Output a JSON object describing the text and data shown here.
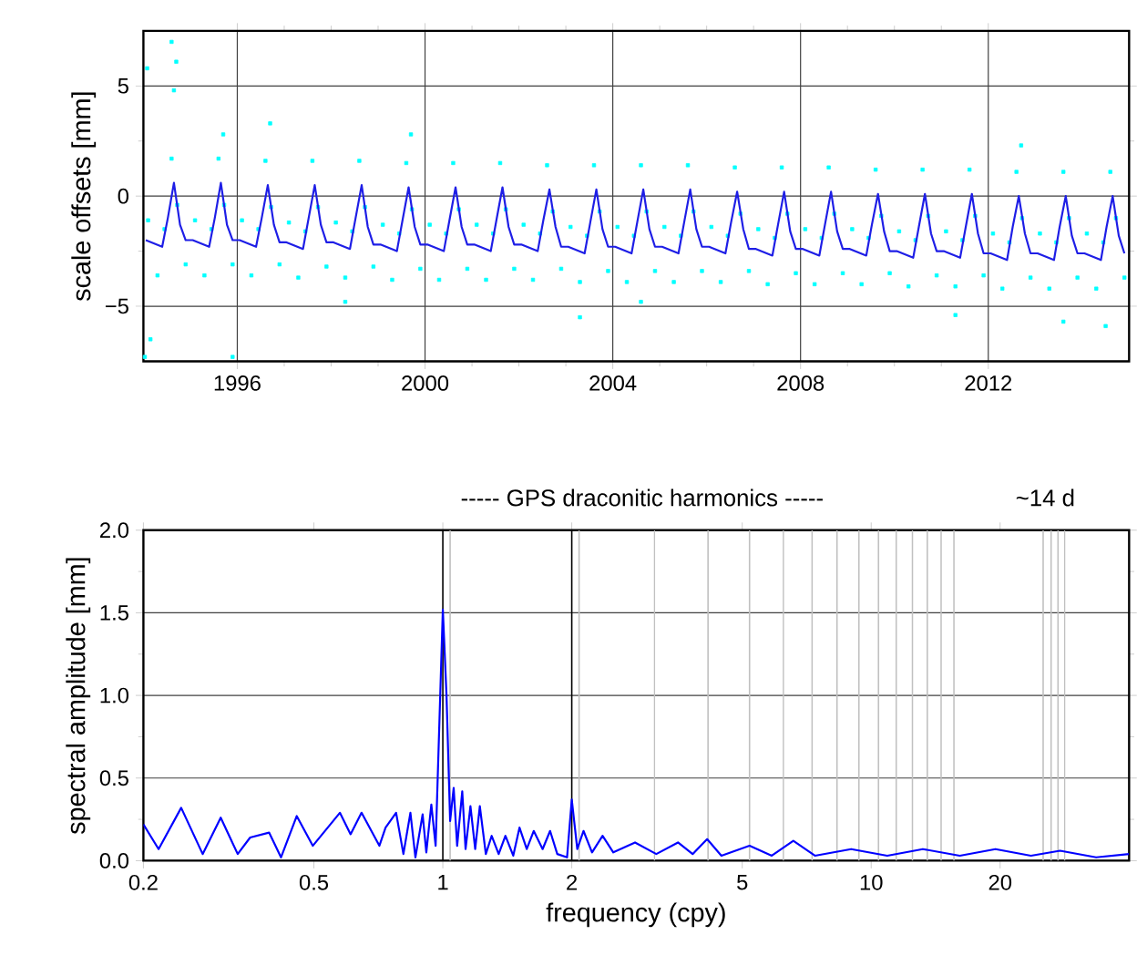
{
  "chart_data": [
    {
      "type": "scatter",
      "ylabel": "scale offsets [mm]",
      "xlim": [
        1994,
        2015
      ],
      "ylim": [
        -7.5,
        7.5
      ],
      "xticks": [
        1996,
        2000,
        2004,
        2008,
        2012
      ],
      "yticks": [
        {
          "value": -5,
          "label": "−5"
        },
        0,
        5
      ],
      "grid": true,
      "marker": "square",
      "series": [
        {
          "type": "scatter",
          "color": "#00ffff",
          "x": [
            1994.1,
            1994.3,
            1994.45,
            1994.6,
            1994.72,
            1994.9,
            1995.1,
            1995.3,
            1995.45,
            1995.6,
            1995.72,
            1995.9,
            1996.1,
            1996.3,
            1996.45,
            1996.6,
            1996.72,
            1996.9,
            1997.1,
            1997.3,
            1997.45,
            1997.6,
            1997.72,
            1997.9,
            1998.1,
            1998.3,
            1998.45,
            1998.6,
            1998.72,
            1998.9,
            1999.1,
            1999.3,
            1999.45,
            1999.6,
            1999.72,
            1999.9,
            2000.1,
            2000.3,
            2000.45,
            2000.6,
            2000.72,
            2000.9,
            2001.1,
            2001.3,
            2001.45,
            2001.6,
            2001.72,
            2001.9,
            2002.1,
            2002.3,
            2002.45,
            2002.6,
            2002.72,
            2002.9,
            2003.1,
            2003.3,
            2003.45,
            2003.6,
            2003.72,
            2003.9,
            2004.1,
            2004.3,
            2004.45,
            2004.6,
            2004.72,
            2004.9,
            2005.1,
            2005.3,
            2005.45,
            2005.6,
            2005.72,
            2005.9,
            2006.1,
            2006.3,
            2006.45,
            2006.6,
            2006.72,
            2006.9,
            2007.1,
            2007.3,
            2007.45,
            2007.6,
            2007.72,
            2007.9,
            2008.1,
            2008.3,
            2008.45,
            2008.6,
            2008.72,
            2008.9,
            2009.1,
            2009.3,
            2009.45,
            2009.6,
            2009.72,
            2009.9,
            2010.1,
            2010.3,
            2010.45,
            2010.6,
            2010.72,
            2010.9,
            2011.1,
            2011.3,
            2011.45,
            2011.6,
            2011.72,
            2011.9,
            2012.1,
            2012.3,
            2012.45,
            2012.6,
            2012.72,
            2012.9,
            2013.1,
            2013.3,
            2013.45,
            2013.6,
            2013.72,
            2013.9,
            2014.1,
            2014.3,
            2014.45,
            2014.6,
            2014.72,
            2014.9,
            1994.03,
            1994.08,
            1994.15,
            1994.6,
            1994.7,
            1994.65,
            1995.9,
            1999.7,
            1996.7,
            2012.7,
            2013.6,
            2014.5,
            2003.3,
            1995.7,
            1998.3,
            2004.6,
            2011.3
          ],
          "values": [
            -1.1,
            -3.6,
            -1.5,
            1.7,
            -0.4,
            -3.1,
            -1.1,
            -3.6,
            -1.5,
            1.7,
            -0.4,
            -3.1,
            -1.1,
            -3.6,
            -1.5,
            1.6,
            -0.5,
            -3.1,
            -1.2,
            -3.7,
            -1.6,
            1.6,
            -0.5,
            -3.2,
            -1.2,
            -3.7,
            -1.6,
            1.6,
            -0.5,
            -3.2,
            -1.3,
            -3.8,
            -1.7,
            1.5,
            -0.6,
            -3.3,
            -1.3,
            -3.8,
            -1.7,
            1.5,
            -0.6,
            -3.3,
            -1.3,
            -3.8,
            -1.7,
            1.5,
            -0.6,
            -3.3,
            -1.3,
            -3.8,
            -1.7,
            1.4,
            -0.7,
            -3.3,
            -1.4,
            -3.9,
            -1.8,
            1.4,
            -0.7,
            -3.4,
            -1.4,
            -3.9,
            -1.8,
            1.4,
            -0.7,
            -3.4,
            -1.4,
            -3.9,
            -1.8,
            1.4,
            -0.7,
            -3.4,
            -1.4,
            -3.9,
            -1.8,
            1.3,
            -0.8,
            -3.4,
            -1.5,
            -4.0,
            -1.9,
            1.3,
            -0.8,
            -3.5,
            -1.5,
            -4.0,
            -1.9,
            1.3,
            -0.8,
            -3.5,
            -1.5,
            -4.0,
            -1.9,
            1.2,
            -0.9,
            -3.5,
            -1.6,
            -4.1,
            -2.0,
            1.2,
            -0.9,
            -3.6,
            -1.6,
            -4.1,
            -2.0,
            1.2,
            -0.9,
            -3.6,
            -1.7,
            -4.2,
            -2.1,
            1.1,
            -1.0,
            -3.7,
            -1.7,
            -4.2,
            -2.1,
            1.1,
            -1.0,
            -3.7,
            -1.7,
            -4.2,
            -2.1,
            1.1,
            -1.0,
            -3.7,
            -7.3,
            5.8,
            -6.5,
            7.0,
            6.1,
            4.8,
            -7.3,
            2.8,
            3.3,
            2.3,
            -5.7,
            -5.9,
            -5.5,
            2.8,
            -4.8,
            -4.8,
            -5.4
          ]
        },
        {
          "type": "line",
          "marker": "none",
          "color": "#1e1ee6",
          "x": [
            1994.05,
            1994.4,
            1994.52,
            1994.65,
            1994.78,
            1994.9,
            1995.05,
            1995.4,
            1995.52,
            1995.65,
            1995.78,
            1995.9,
            1996.05,
            1996.4,
            1996.52,
            1996.65,
            1996.78,
            1996.9,
            1997.05,
            1997.4,
            1997.52,
            1997.65,
            1997.78,
            1997.9,
            1998.05,
            1998.4,
            1998.52,
            1998.65,
            1998.78,
            1998.9,
            1999.05,
            1999.4,
            1999.52,
            1999.65,
            1999.78,
            1999.9,
            2000.05,
            2000.4,
            2000.52,
            2000.65,
            2000.78,
            2000.9,
            2001.05,
            2001.4,
            2001.52,
            2001.65,
            2001.78,
            2001.9,
            2002.05,
            2002.4,
            2002.52,
            2002.65,
            2002.78,
            2002.9,
            2003.05,
            2003.4,
            2003.52,
            2003.65,
            2003.78,
            2003.9,
            2004.05,
            2004.4,
            2004.52,
            2004.65,
            2004.78,
            2004.9,
            2005.05,
            2005.4,
            2005.52,
            2005.65,
            2005.78,
            2005.9,
            2006.05,
            2006.4,
            2006.52,
            2006.65,
            2006.78,
            2006.9,
            2007.05,
            2007.4,
            2007.52,
            2007.65,
            2007.78,
            2007.9,
            2008.05,
            2008.4,
            2008.52,
            2008.65,
            2008.78,
            2008.9,
            2009.05,
            2009.4,
            2009.52,
            2009.65,
            2009.78,
            2009.9,
            2010.05,
            2010.4,
            2010.52,
            2010.65,
            2010.78,
            2010.9,
            2011.05,
            2011.4,
            2011.52,
            2011.65,
            2011.78,
            2011.9,
            2012.05,
            2012.4,
            2012.52,
            2012.65,
            2012.78,
            2012.9,
            2013.05,
            2013.4,
            2013.52,
            2013.65,
            2013.78,
            2013.9,
            2014.05,
            2014.4,
            2014.52,
            2014.65,
            2014.78,
            2014.9
          ],
          "values": [
            -2.0,
            -2.3,
            -1.0,
            0.6,
            -1.3,
            -2.0,
            -2.0,
            -2.3,
            -1.0,
            0.6,
            -1.3,
            -2.0,
            -2.0,
            -2.3,
            -1.0,
            0.5,
            -1.3,
            -2.1,
            -2.1,
            -2.4,
            -1.0,
            0.5,
            -1.3,
            -2.1,
            -2.1,
            -2.4,
            -1.0,
            0.5,
            -1.4,
            -2.2,
            -2.2,
            -2.5,
            -1.1,
            0.4,
            -1.4,
            -2.2,
            -2.2,
            -2.5,
            -1.1,
            0.4,
            -1.4,
            -2.2,
            -2.2,
            -2.5,
            -1.1,
            0.4,
            -1.4,
            -2.2,
            -2.2,
            -2.5,
            -1.1,
            0.3,
            -1.4,
            -2.3,
            -2.3,
            -2.6,
            -1.2,
            0.3,
            -1.5,
            -2.3,
            -2.3,
            -2.6,
            -1.2,
            0.3,
            -1.5,
            -2.3,
            -2.3,
            -2.6,
            -1.2,
            0.3,
            -1.5,
            -2.3,
            -2.3,
            -2.6,
            -1.2,
            0.2,
            -1.5,
            -2.4,
            -2.4,
            -2.7,
            -1.3,
            0.2,
            -1.6,
            -2.4,
            -2.4,
            -2.7,
            -1.3,
            0.2,
            -1.6,
            -2.4,
            -2.4,
            -2.7,
            -1.3,
            0.1,
            -1.6,
            -2.5,
            -2.5,
            -2.8,
            -1.4,
            0.1,
            -1.7,
            -2.5,
            -2.5,
            -2.8,
            -1.4,
            0.1,
            -1.7,
            -2.6,
            -2.6,
            -2.9,
            -1.4,
            0.0,
            -1.7,
            -2.6,
            -2.6,
            -2.9,
            -1.4,
            0.0,
            -1.8,
            -2.6,
            -2.6,
            -2.9,
            -1.4,
            0.0,
            -1.8,
            -2.6
          ]
        }
      ]
    },
    {
      "type": "line",
      "xlabel": "frequency (cpy)",
      "ylabel": "spectral amplitude [mm]",
      "log": "x",
      "xlim": [
        0.2,
        40
      ],
      "ylim": [
        0,
        2.0
      ],
      "xticks": [
        0.2,
        0.5,
        1,
        2,
        5,
        10,
        20
      ],
      "yticks": [
        {
          "value": 0,
          "label": "0.0"
        },
        {
          "value": 0.5,
          "label": "0.5"
        },
        {
          "value": 1.0,
          "label": "1.0"
        },
        {
          "value": 1.5,
          "label": "1.5"
        },
        {
          "value": 2.0,
          "label": "2.0"
        }
      ],
      "grid": "y",
      "annotations": [
        "----- GPS draconitic harmonics -----",
        "~14 d"
      ],
      "ref_lines": [
        {
          "axis": "x",
          "value": 1.04,
          "color": "#c0c0c0"
        },
        {
          "axis": "x",
          "value": 2.08,
          "color": "#c0c0c0"
        },
        {
          "axis": "x",
          "value": 3.12,
          "color": "#c0c0c0"
        },
        {
          "axis": "x",
          "value": 4.16,
          "color": "#c0c0c0"
        },
        {
          "axis": "x",
          "value": 5.2,
          "color": "#c0c0c0"
        },
        {
          "axis": "x",
          "value": 6.24,
          "color": "#c0c0c0"
        },
        {
          "axis": "x",
          "value": 7.28,
          "color": "#c0c0c0"
        },
        {
          "axis": "x",
          "value": 8.32,
          "color": "#c0c0c0"
        },
        {
          "axis": "x",
          "value": 9.36,
          "color": "#c0c0c0"
        },
        {
          "axis": "x",
          "value": 10.4,
          "color": "#c0c0c0"
        },
        {
          "axis": "x",
          "value": 11.44,
          "color": "#c0c0c0"
        },
        {
          "axis": "x",
          "value": 12.48,
          "color": "#c0c0c0"
        },
        {
          "axis": "x",
          "value": 13.52,
          "color": "#c0c0c0"
        },
        {
          "axis": "x",
          "value": 14.56,
          "color": "#c0c0c0"
        },
        {
          "axis": "x",
          "value": 15.6,
          "color": "#c0c0c0"
        },
        {
          "axis": "x",
          "value": 25.2,
          "color": "#c0c0c0"
        },
        {
          "axis": "x",
          "value": 26.3,
          "color": "#c0c0c0"
        },
        {
          "axis": "x",
          "value": 27.3,
          "color": "#c0c0c0"
        },
        {
          "axis": "x",
          "value": 28.3,
          "color": "#c0c0c0"
        },
        {
          "axis": "x",
          "value": 1,
          "color": "#000000"
        },
        {
          "axis": "x",
          "value": 2,
          "color": "#000000"
        }
      ],
      "series": [
        {
          "color": "#0000ff",
          "x": [
            0.2,
            0.217,
            0.245,
            0.275,
            0.303,
            0.332,
            0.355,
            0.393,
            0.419,
            0.456,
            0.497,
            0.575,
            0.609,
            0.646,
            0.711,
            0.735,
            0.778,
            0.809,
            0.84,
            0.863,
            0.897,
            0.915,
            0.94,
            0.962,
            1.0,
            1.02,
            1.04,
            1.06,
            1.08,
            1.11,
            1.13,
            1.16,
            1.19,
            1.22,
            1.26,
            1.3,
            1.35,
            1.4,
            1.46,
            1.51,
            1.57,
            1.63,
            1.71,
            1.78,
            1.85,
            1.95,
            2.0,
            2.06,
            2.13,
            2.23,
            2.36,
            2.5,
            2.81,
            3.15,
            3.54,
            3.83,
            4.14,
            4.47,
            5.2,
            5.86,
            6.58,
            7.39,
            8.98,
            10.9,
            13.2,
            16.1,
            19.5,
            23.6,
            27.6,
            33.5,
            40
          ],
          "values": [
            0.22,
            0.07,
            0.32,
            0.04,
            0.26,
            0.04,
            0.14,
            0.17,
            0.02,
            0.27,
            0.09,
            0.29,
            0.16,
            0.29,
            0.09,
            0.2,
            0.29,
            0.04,
            0.29,
            0.02,
            0.28,
            0.05,
            0.34,
            0.09,
            1.52,
            1.0,
            0.24,
            0.44,
            0.09,
            0.42,
            0.07,
            0.33,
            0.07,
            0.33,
            0.04,
            0.15,
            0.04,
            0.15,
            0.03,
            0.2,
            0.07,
            0.18,
            0.07,
            0.18,
            0.04,
            0.02,
            0.37,
            0.07,
            0.18,
            0.05,
            0.15,
            0.05,
            0.11,
            0.04,
            0.11,
            0.04,
            0.13,
            0.03,
            0.09,
            0.03,
            0.12,
            0.03,
            0.07,
            0.03,
            0.07,
            0.03,
            0.07,
            0.03,
            0.06,
            0.02,
            0.04
          ]
        }
      ]
    }
  ]
}
